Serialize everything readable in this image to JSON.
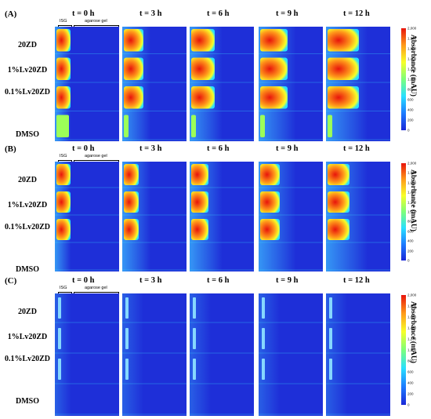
{
  "colors": {
    "background_field": "#1e2fd8",
    "agarose_gradient_edge": "#3db9ff",
    "cbar_stops": [
      "#1a28d8",
      "#1e7cff",
      "#28e0ff",
      "#7cff7a",
      "#f7ff28",
      "#ff9a1a",
      "#e8140c"
    ]
  },
  "colorbar_ticks": [
    "2,000",
    "1,800",
    "1,600",
    "1,400",
    "1,200",
    "1,000",
    "800",
    "600",
    "400",
    "200",
    "0"
  ],
  "colorbar_title": "Absorbance (mAU)",
  "annotations": {
    "isg": "ISG",
    "agarose": "agarose gel"
  },
  "times": [
    "t = 0 h",
    "t = 3 h",
    "t = 6 h",
    "t = 9 h",
    "t = 12 h"
  ],
  "rows": [
    "20ZD",
    "1%Lv20ZD",
    "0.1%Lv20ZD",
    "DMSO"
  ],
  "panels": [
    {
      "letter": "(A)",
      "type": "hot"
    },
    {
      "letter": "(B)",
      "type": "mid"
    },
    {
      "letter": "(C)",
      "type": "cool"
    }
  ]
}
